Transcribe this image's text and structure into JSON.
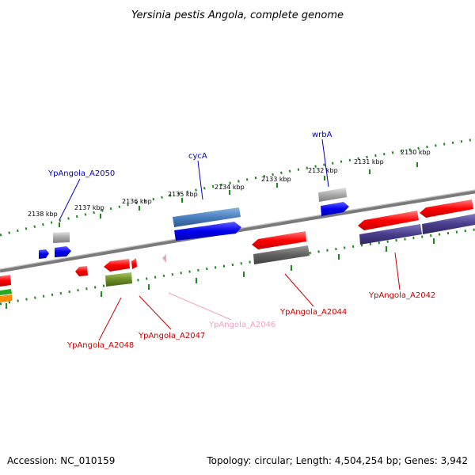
{
  "title": "Yersinia pestis Angola, complete genome",
  "footer": {
    "accession": "Accession: NC_010159",
    "summary": "Topology: circular; Length: 4,504,254 bp; Genes: 3,942"
  },
  "ticks": [
    "2138 kbp",
    "2137 kbp",
    "2136 kbp",
    "2135 kbp",
    "2134 kbp",
    "2133 kbp",
    "2132 kbp",
    "2131 kbp",
    "2130 kbp"
  ],
  "gene_labels": [
    {
      "text": "YpAngola_A2050",
      "color": "#0000cc"
    },
    {
      "text": "cycA",
      "color": "#0000cc"
    },
    {
      "text": "wrbA",
      "color": "#0000cc"
    },
    {
      "text": "YpAngola_A2048",
      "color": "#cc0000"
    },
    {
      "text": "YpAngola_A2047",
      "color": "#cc0000"
    },
    {
      "text": "YpAngola_A2046",
      "color": "#f29fc5"
    },
    {
      "text": "YpAngola_A2044",
      "color": "#cc0000"
    },
    {
      "text": "YpAngola_A2042",
      "color": "#cc0000"
    }
  ],
  "colors": {
    "backbone": "#7a7a7a",
    "tick": "#1a8a1a",
    "cds_forward": "#ff0000",
    "cds_reverse": "#0000ee",
    "rna": "#f29fc5",
    "steelblue": "#4a7fbf",
    "olive": "#6b8e23",
    "grey": "#a8a8a8",
    "darkgrey": "#606060",
    "purple": "#483d8b"
  }
}
